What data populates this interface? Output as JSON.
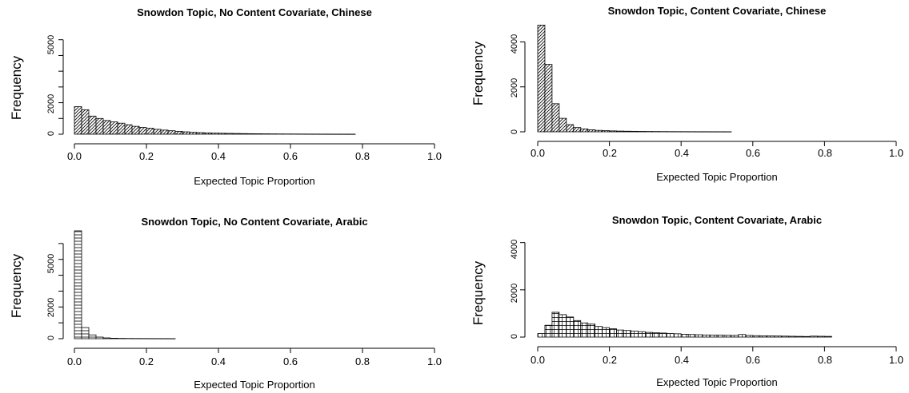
{
  "chart_data": [
    {
      "type": "bar",
      "title": "Snowdon Topic, No Content Covariate, Chinese",
      "xlabel": "Expected Topic Proportion",
      "ylabel": "Frequency",
      "xlim": [
        0,
        1
      ],
      "ylim": [
        0,
        7000
      ],
      "xticks": [
        "0.0",
        "0.2",
        "0.4",
        "0.6",
        "0.8",
        "1.0"
      ],
      "yticks": [
        "0",
        "",
        "2000",
        "",
        "",
        "5000",
        ""
      ],
      "ytick_values": [
        0,
        1000,
        2000,
        3000,
        4000,
        5000,
        6000
      ],
      "bin_width": 0.02,
      "bin_start": 0.0,
      "fill_pattern": "diagonal-hatch",
      "values": [
        1750,
        1550,
        1150,
        1000,
        870,
        780,
        700,
        600,
        500,
        430,
        380,
        310,
        260,
        220,
        180,
        150,
        120,
        100,
        85,
        70,
        60,
        52,
        45,
        38,
        32,
        28,
        24,
        20,
        17,
        15,
        13,
        11,
        9,
        8,
        7,
        6,
        5,
        5,
        4
      ]
    },
    {
      "type": "bar",
      "title": "Snowdon Topic, Content Covariate, Chinese",
      "xlabel": "Expected Topic Proportion",
      "ylabel": "Frequency",
      "xlim": [
        0,
        1
      ],
      "ylim": [
        0,
        4800
      ],
      "xticks": [
        "0.0",
        "0.2",
        "0.4",
        "0.6",
        "0.8",
        "1.0"
      ],
      "yticks": [
        "0",
        "2000",
        "4000"
      ],
      "ytick_values": [
        0,
        2000,
        4000
      ],
      "bin_width": 0.02,
      "bin_start": 0.0,
      "fill_pattern": "diagonal-hatch",
      "values": [
        4750,
        3000,
        1250,
        600,
        320,
        190,
        130,
        90,
        65,
        50,
        40,
        32,
        26,
        22,
        18,
        15,
        13,
        11,
        9,
        8,
        7,
        6,
        5,
        5,
        4,
        4,
        3
      ]
    },
    {
      "type": "bar",
      "title": "Snowdon Topic, No Content Covariate, Arabic",
      "xlabel": "Expected Topic Proportion",
      "ylabel": "Frequency",
      "xlim": [
        0,
        1
      ],
      "ylim": [
        0,
        7000
      ],
      "xticks": [
        "0.0",
        "0.2",
        "0.4",
        "0.6",
        "0.8",
        "1.0"
      ],
      "yticks": [
        "0",
        "",
        "2000",
        "",
        "",
        "5000",
        ""
      ],
      "ytick_values": [
        0,
        1000,
        2000,
        3000,
        4000,
        5000,
        6000
      ],
      "bin_width": 0.02,
      "bin_start": 0.0,
      "fill_pattern": "horizontal-lines",
      "values": [
        6800,
        700,
        240,
        100,
        50,
        30,
        20,
        15,
        12,
        10,
        8,
        7,
        6,
        5
      ]
    },
    {
      "type": "bar",
      "title": "Snowdon Topic, Content Covariate, Arabic",
      "xlabel": "Expected Topic Proportion",
      "ylabel": "Frequency",
      "xlim": [
        0,
        1
      ],
      "ylim": [
        0,
        4800
      ],
      "xticks": [
        "0.0",
        "0.2",
        "0.4",
        "0.6",
        "0.8",
        "1.0"
      ],
      "yticks": [
        "0",
        "2000",
        "4000"
      ],
      "ytick_values": [
        0,
        2000,
        4000
      ],
      "bin_width": 0.02,
      "bin_start": 0.0,
      "fill_pattern": "grid",
      "values": [
        150,
        500,
        1050,
        950,
        850,
        700,
        600,
        550,
        450,
        400,
        350,
        300,
        280,
        250,
        230,
        200,
        180,
        170,
        150,
        140,
        120,
        110,
        100,
        90,
        85,
        80,
        75,
        70,
        110,
        70,
        60,
        55,
        50,
        45,
        40,
        35,
        30,
        25,
        40,
        35,
        30
      ]
    }
  ]
}
